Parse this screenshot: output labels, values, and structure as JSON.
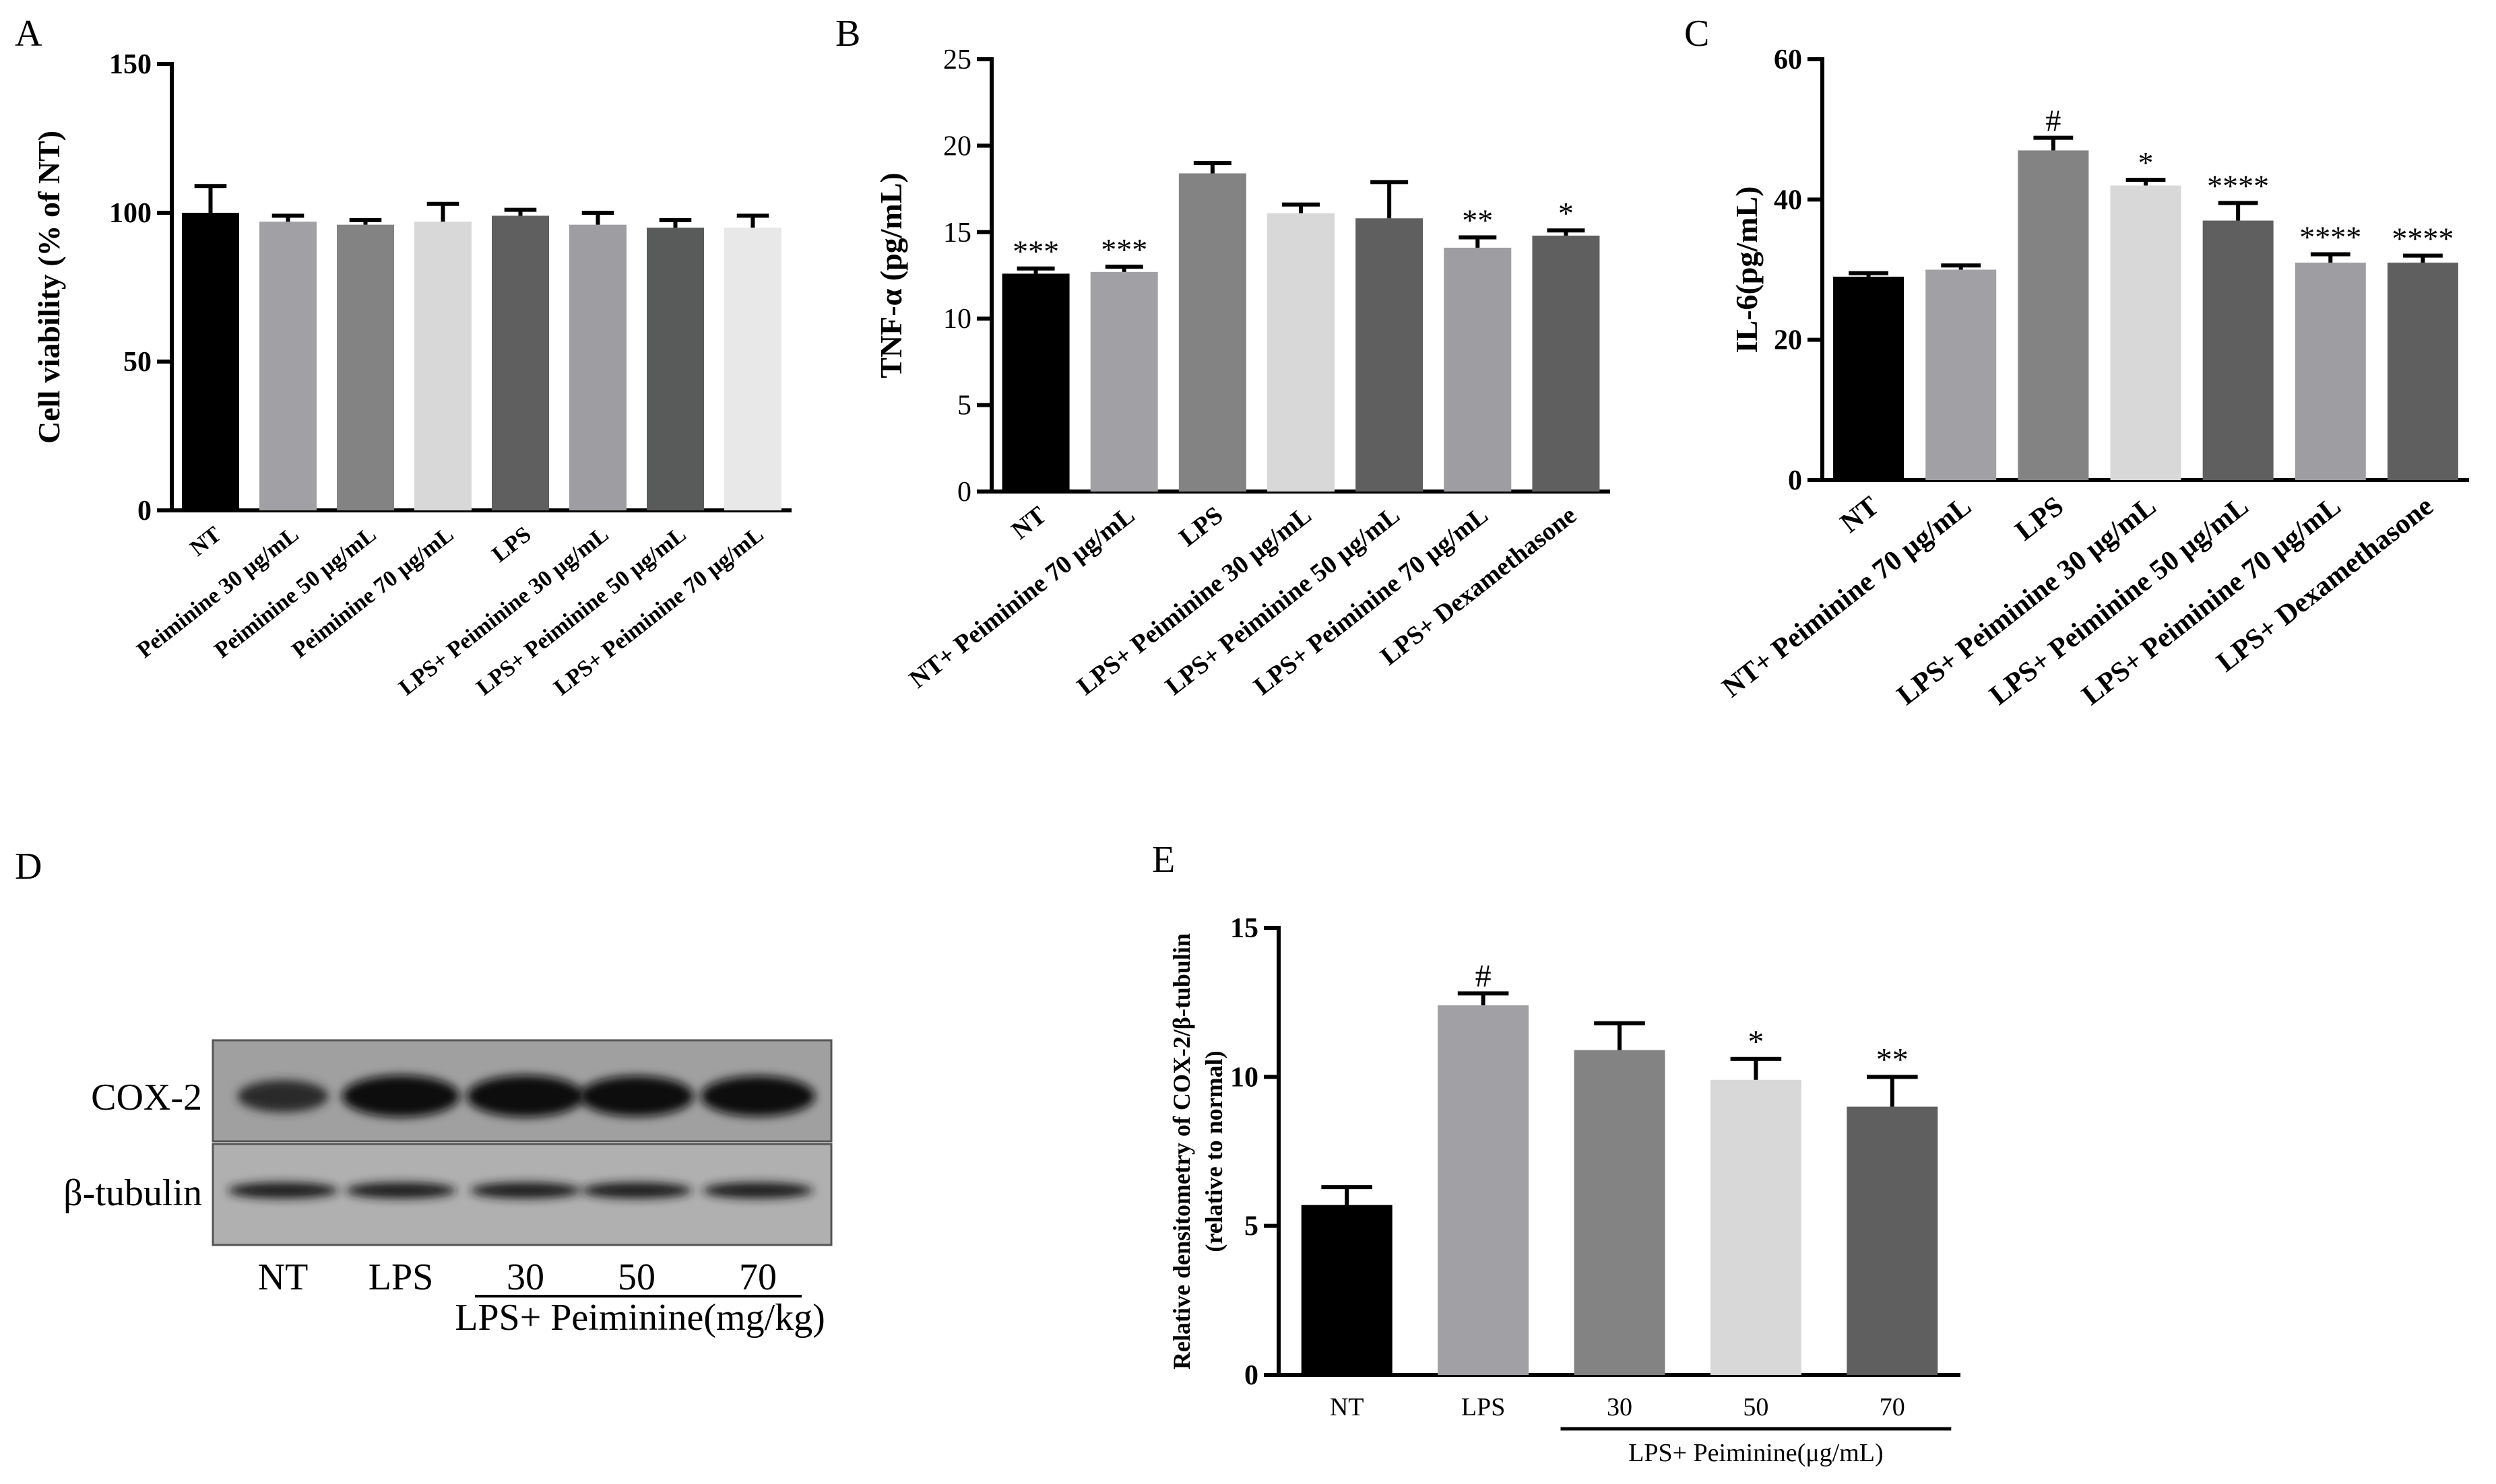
{
  "chart_data": [
    {
      "type": "bar",
      "panel": "A",
      "ylabel": "Cell viability (% of NT)",
      "ylim": [
        0,
        150
      ],
      "yticks": [
        0,
        50,
        100,
        150
      ],
      "categories": [
        "NT",
        "Peiminine 30 μg/mL",
        "Peiminine 50 μg/mL",
        "Peiminine 70 μg/mL",
        "LPS",
        "LPS+ Peiminine 30 μg/mL",
        "LPS+ Peiminine 50 μg/mL",
        "LPS+ Peiminine 70 μg/mL"
      ],
      "values": [
        100,
        97,
        96,
        97,
        99,
        96,
        95,
        95
      ],
      "errors": [
        9,
        2,
        1.5,
        6,
        2,
        4,
        2.5,
        4
      ],
      "annotations": [
        "",
        "",
        "",
        "",
        "",
        "",
        "",
        ""
      ],
      "colors": [
        "#000000",
        "#a1a1a5",
        "#838383",
        "#d8d8d8",
        "#5f5f5f",
        "#9e9ea2",
        "#595b5b",
        "#e8e8e8"
      ]
    },
    {
      "type": "bar",
      "panel": "B",
      "ylabel": "TNF-α (pg/mL)",
      "ylim": [
        0,
        25
      ],
      "yticks": [
        0,
        5,
        10,
        15,
        20,
        25
      ],
      "categories": [
        "NT",
        "NT+ Peiminine 70 μg/mL",
        "LPS",
        "LPS+ Peiminine 30 μg/mL",
        "LPS+ Peiminine 50 μg/mL",
        "LPS+ Peiminine 70 μg/mL",
        "LPS+ Dexamethasone"
      ],
      "values": [
        12.6,
        12.7,
        18.4,
        16.1,
        15.8,
        14.1,
        14.8
      ],
      "errors": [
        0.3,
        0.3,
        0.6,
        0.5,
        2.1,
        0.6,
        0.3
      ],
      "annotations": [
        "***",
        "***",
        "",
        "",
        "",
        "**",
        "*"
      ],
      "colors": [
        "#000000",
        "#a1a1a5",
        "#838383",
        "#d8d8d8",
        "#5f5f5f",
        "#9e9ea2",
        "#5f5f5f"
      ]
    },
    {
      "type": "bar",
      "panel": "C",
      "ylabel": "IL-6(pg/mL)",
      "ylim": [
        0,
        60
      ],
      "yticks": [
        0,
        20,
        40,
        60
      ],
      "categories": [
        "NT",
        "NT+ Peiminine 70 μg/mL",
        "LPS",
        "LPS+ Peiminine 30 μg/mL",
        "LPS+ Peiminine 50 μg/mL",
        "LPS+ Peiminine 70 μg/mL",
        "LPS+ Dexamethasone"
      ],
      "values": [
        29,
        30,
        47,
        42,
        37,
        31,
        31
      ],
      "errors": [
        0.5,
        0.6,
        1.8,
        0.8,
        2.5,
        1.2,
        1.0
      ],
      "annotations": [
        "",
        "",
        "#",
        "*",
        "****",
        "****",
        "****"
      ],
      "colors": [
        "#000000",
        "#a1a1a5",
        "#838383",
        "#d8d8d8",
        "#5f5f5f",
        "#9e9ea2",
        "#5f5f5f"
      ]
    },
    {
      "type": "bar",
      "panel": "E",
      "ylabel": "Relative densitometry of COX-2/β-tubulin",
      "ylabel2": "(relative to normal)",
      "ylim": [
        0,
        15
      ],
      "yticks": [
        0,
        5,
        10,
        15
      ],
      "categories": [
        "NT",
        "LPS",
        "30",
        "50",
        "70"
      ],
      "values": [
        5.7,
        12.4,
        10.9,
        9.9,
        9.0
      ],
      "errors": [
        0.6,
        0.4,
        0.9,
        0.7,
        1.0
      ],
      "annotations": [
        "",
        "#",
        "",
        "*",
        "**"
      ],
      "group_label": "LPS+ Peiminine(μg/mL)",
      "colors": [
        "#000000",
        "#a1a1a5",
        "#838383",
        "#d8d8d8",
        "#5f5f5f"
      ]
    }
  ],
  "blot": {
    "panel": "D",
    "rows": [
      "COX-2",
      "β-tubulin"
    ],
    "lanes": [
      "NT",
      "LPS",
      "30",
      "50",
      "70"
    ],
    "group_label": "LPS+ Peiminine(mg/kg)",
    "cox2_intensity": [
      0.55,
      0.95,
      0.95,
      0.9,
      0.9
    ],
    "tubulin_intensity": [
      0.85,
      0.85,
      0.85,
      0.85,
      0.85
    ]
  },
  "panel_labels": [
    "A",
    "B",
    "C",
    "D",
    "E"
  ]
}
